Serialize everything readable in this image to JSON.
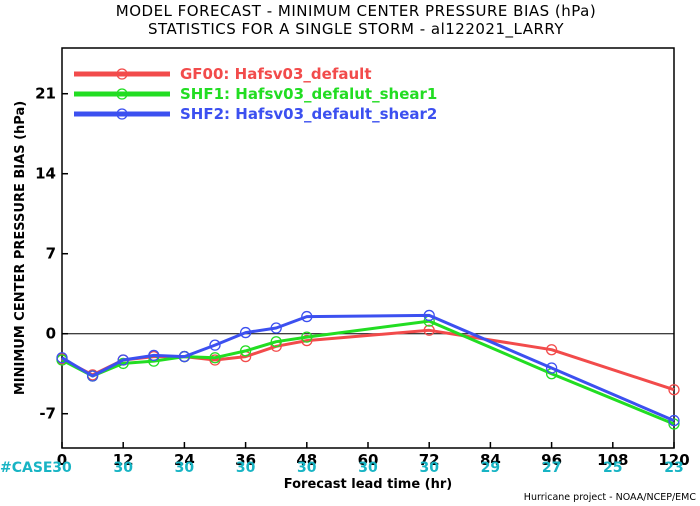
{
  "title_line1": "MODEL FORECAST - MINIMUM CENTER PRESSURE BIAS (hPa)",
  "title_line2": "STATISTICS FOR A SINGLE STORM - al122021_LARRY",
  "credit": "Hurricane project - NOAA/NCEP/EMC",
  "case_label": "#CASE",
  "case_color": "#18b4c4",
  "chart_data": {
    "type": "line",
    "xlabel": "Forecast lead time (hr)",
    "ylabel": "MINIMUM CENTER PRESSURE BIAS (hPa)",
    "xlim": [
      0,
      120
    ],
    "ylim": [
      -10,
      25
    ],
    "xticks": [
      0,
      12,
      24,
      36,
      48,
      60,
      72,
      84,
      96,
      108,
      120
    ],
    "yticks": [
      -7,
      0,
      7,
      14,
      21
    ],
    "zero_line": true,
    "grid": false,
    "legend_position": "top-left",
    "case_counts": [
      "30",
      "30",
      "30",
      "30",
      "30",
      "30",
      "30",
      "29",
      "27",
      "25",
      "23"
    ],
    "series": [
      {
        "name": "GF00: Hafsv03_default",
        "color": "#f24b4b",
        "x": [
          0,
          6,
          12,
          18,
          24,
          30,
          36,
          42,
          48,
          72,
          96,
          120
        ],
        "y": [
          -2.2,
          -3.6,
          -2.3,
          -2.0,
          -2.0,
          -2.3,
          -2.0,
          -1.1,
          -0.6,
          0.3,
          -1.4,
          -4.9
        ]
      },
      {
        "name": "SHF1: Hafsv03_defalut_shear1",
        "color": "#22dd22",
        "x": [
          0,
          6,
          12,
          18,
          24,
          30,
          36,
          42,
          48,
          72,
          96,
          120
        ],
        "y": [
          -2.3,
          -3.7,
          -2.6,
          -2.4,
          -2.0,
          -2.1,
          -1.5,
          -0.7,
          -0.3,
          1.1,
          -3.5,
          -7.9
        ]
      },
      {
        "name": "SHF2: Hafsv03_default_shear2",
        "color": "#3c50f0",
        "x": [
          0,
          6,
          12,
          18,
          24,
          30,
          36,
          42,
          48,
          72,
          96,
          120
        ],
        "y": [
          -2.1,
          -3.7,
          -2.3,
          -1.9,
          -2.0,
          -1.0,
          0.1,
          0.5,
          1.5,
          1.6,
          -3.0,
          -7.6
        ]
      }
    ]
  }
}
